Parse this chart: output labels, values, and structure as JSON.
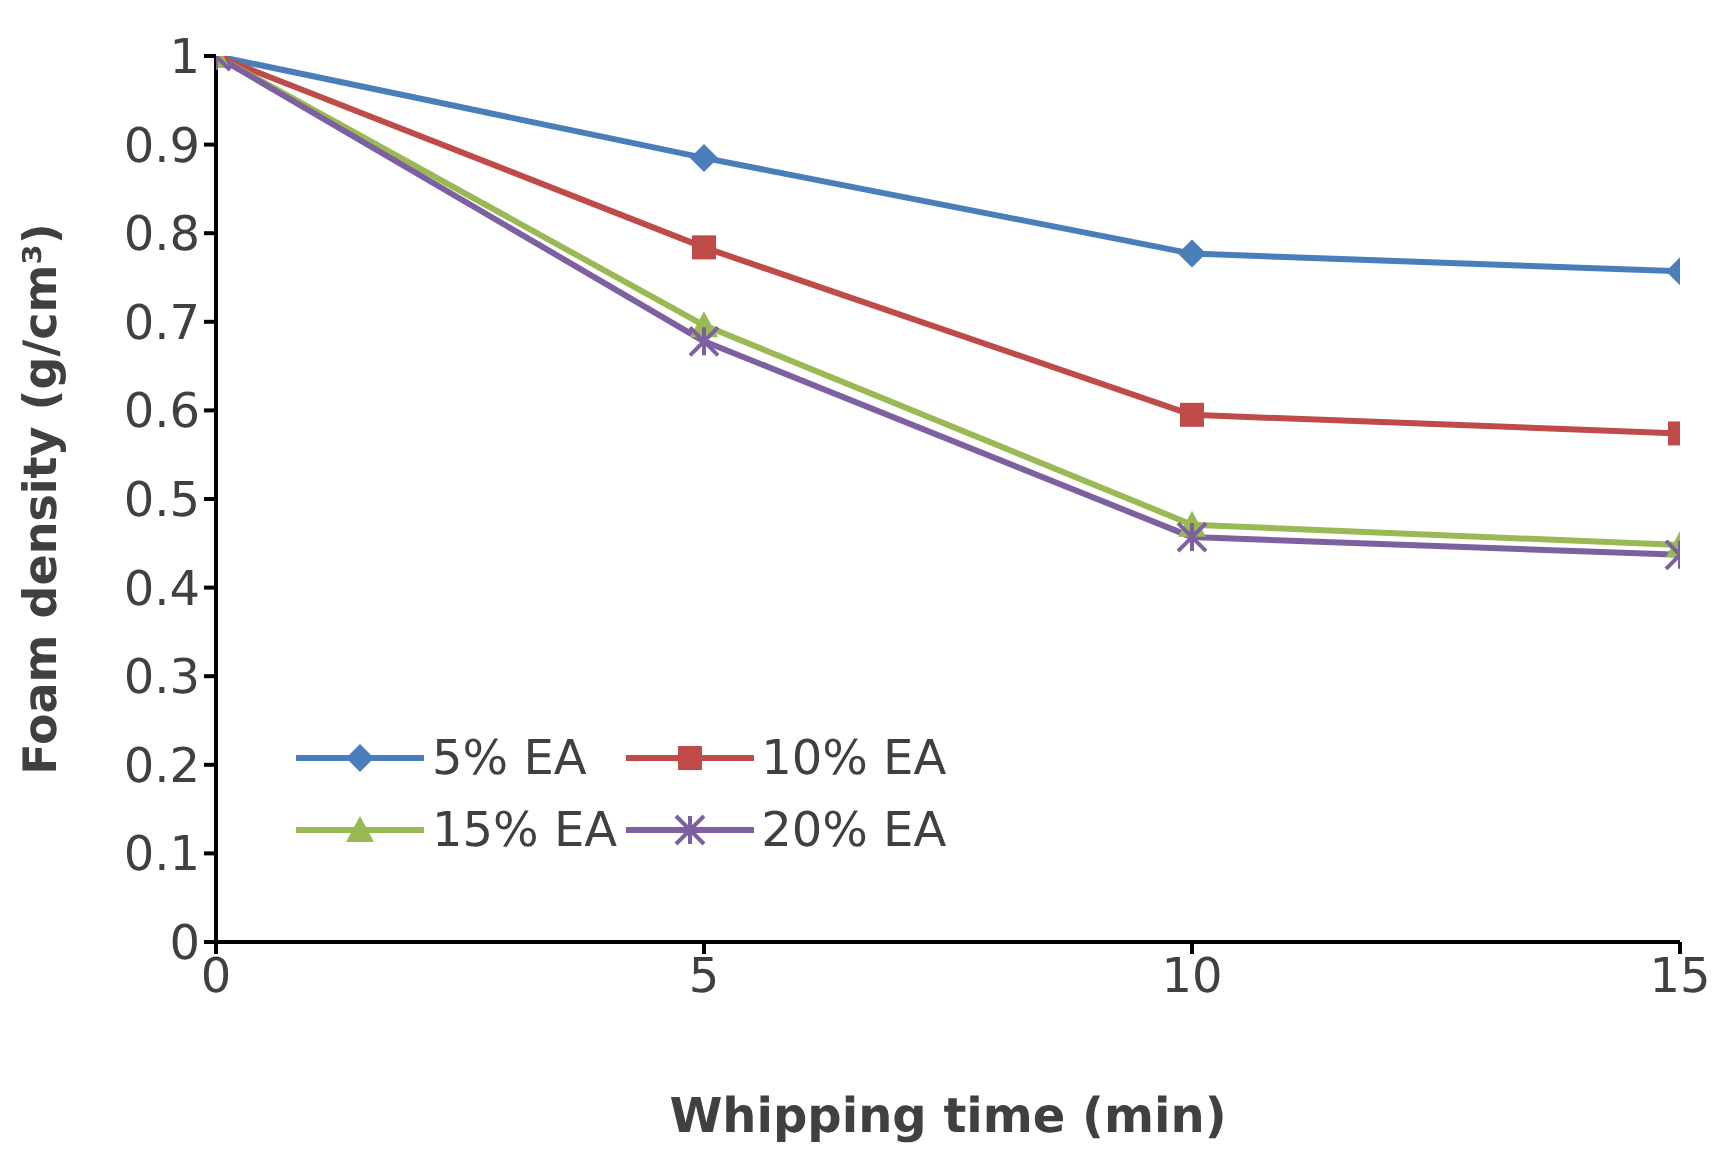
{
  "chart_data": {
    "type": "line",
    "xlabel": "Whipping time (min)",
    "ylabel": "Foam density (g/cm³)",
    "x": [
      0,
      5,
      10,
      15
    ],
    "xlim": [
      0,
      15
    ],
    "xticks": [
      0,
      5,
      10,
      15
    ],
    "ylim": [
      0,
      1
    ],
    "yticks": [
      0,
      0.1,
      0.2,
      0.3,
      0.4,
      0.5,
      0.6,
      0.7,
      0.8,
      0.9,
      1
    ],
    "grid": false,
    "legend": "bottom left",
    "line_style": "solid",
    "series": [
      {
        "name": "5% EA",
        "color": "#4a7ebb",
        "marker": "diamond",
        "values": [
          1,
          0.885,
          0.777,
          0.757
        ]
      },
      {
        "name": "10% EA",
        "color": "#be4b48",
        "marker": "square",
        "values": [
          1,
          0.784,
          0.595,
          0.574
        ]
      },
      {
        "name": "15% EA",
        "color": "#98b954",
        "marker": "triangle",
        "values": [
          1,
          0.696,
          0.471,
          0.448
        ]
      },
      {
        "name": "20% EA",
        "color": "#7d60a0",
        "marker": "cross",
        "values": [
          1,
          0.678,
          0.457,
          0.437
        ]
      }
    ]
  }
}
